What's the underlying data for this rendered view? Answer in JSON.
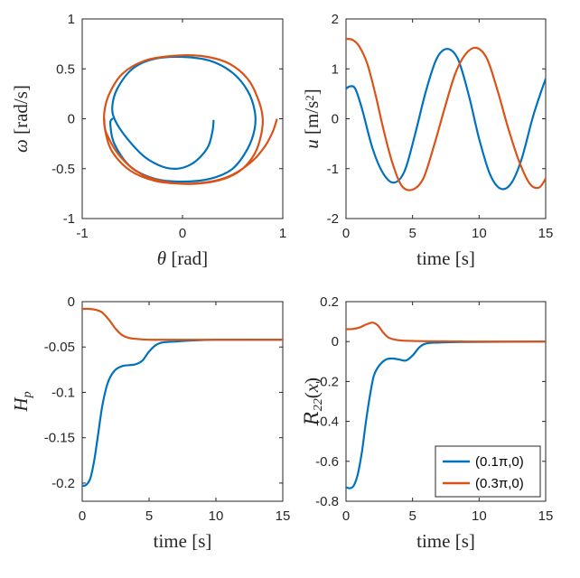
{
  "colors": {
    "series1": "#0072BD",
    "series2": "#D95319",
    "axis": "#262626"
  },
  "legend": {
    "entries": [
      "(0.1π,0)",
      "(0.3π,0)"
    ],
    "location": "bottom-right of bottom-right panel"
  },
  "chart_data": [
    {
      "type": "line",
      "panel": "top-left",
      "xlabel": "θ [rad]",
      "ylabel": "ω [rad/s]",
      "xlim": [
        -1,
        1
      ],
      "ylim": [
        -1,
        1
      ],
      "xticks": [
        -1,
        0,
        1
      ],
      "yticks": [
        -1,
        -0.5,
        0,
        0.5,
        1
      ],
      "xtick_labels": [
        "-1",
        "0",
        "1"
      ],
      "ytick_labels": [
        "-1",
        "-0.5",
        "0",
        "0.5",
        "1"
      ],
      "series": [
        {
          "name": "(0.1π,0)",
          "x": [
            0.31,
            0.3,
            0.26,
            0.18,
            0.08,
            -0.05,
            -0.2,
            -0.38,
            -0.55,
            -0.67,
            -0.7,
            -0.65,
            -0.5,
            -0.28,
            0.0,
            0.28,
            0.5,
            0.65,
            0.72,
            0.72,
            0.65,
            0.5,
            0.28,
            0.0,
            -0.28,
            -0.52,
            -0.68,
            -0.72,
            -0.7
          ],
          "y": [
            -0.02,
            -0.12,
            -0.27,
            -0.38,
            -0.46,
            -0.5,
            -0.48,
            -0.38,
            -0.2,
            -0.02,
            0.12,
            0.3,
            0.5,
            0.6,
            0.62,
            0.58,
            0.46,
            0.28,
            0.08,
            -0.1,
            -0.3,
            -0.5,
            -0.6,
            -0.63,
            -0.6,
            -0.48,
            -0.25,
            -0.05,
            0.0
          ]
        },
        {
          "name": "(0.3π,0)",
          "x": [
            0.94,
            0.9,
            0.82,
            0.7,
            0.5,
            0.28,
            0.0,
            -0.28,
            -0.52,
            -0.7,
            -0.77,
            -0.78,
            -0.73,
            -0.6,
            -0.38,
            -0.1,
            0.18,
            0.45,
            0.65,
            0.76,
            0.8,
            0.78,
            0.72,
            0.6,
            0.42,
            0.15,
            -0.12,
            -0.4,
            -0.62,
            -0.76,
            -0.78
          ],
          "y": [
            -0.01,
            -0.13,
            -0.28,
            -0.42,
            -0.56,
            -0.63,
            -0.65,
            -0.62,
            -0.52,
            -0.33,
            -0.12,
            0.06,
            0.25,
            0.45,
            0.58,
            0.63,
            0.63,
            0.56,
            0.4,
            0.18,
            0.0,
            -0.18,
            -0.35,
            -0.5,
            -0.6,
            -0.65,
            -0.64,
            -0.56,
            -0.38,
            -0.14,
            0.0
          ]
        }
      ]
    },
    {
      "type": "line",
      "panel": "top-right",
      "xlabel": "time [s]",
      "ylabel": "u [m/s²]",
      "xlim": [
        0,
        15
      ],
      "ylim": [
        -2,
        2
      ],
      "xticks": [
        0,
        5,
        10,
        15
      ],
      "yticks": [
        -2,
        -1,
        0,
        1,
        2
      ],
      "xtick_labels": [
        "0",
        "5",
        "10",
        "15"
      ],
      "ytick_labels": [
        "-2",
        "-1",
        "0",
        "1",
        "2"
      ],
      "series": [
        {
          "name": "(0.1π,0)",
          "x": [
            0,
            0.3,
            0.7,
            1.2,
            2.0,
            2.8,
            3.6,
            4.4,
            5.2,
            6.0,
            6.8,
            7.6,
            8.4,
            9.2,
            10.0,
            10.8,
            11.6,
            12.4,
            13.2,
            14.0,
            14.6,
            15.0
          ],
          "y": [
            0.6,
            0.65,
            0.6,
            0.2,
            -0.6,
            -1.1,
            -1.28,
            -1.05,
            -0.3,
            0.55,
            1.2,
            1.4,
            1.2,
            0.5,
            -0.4,
            -1.1,
            -1.4,
            -1.3,
            -0.8,
            0.0,
            0.5,
            0.8
          ]
        },
        {
          "name": "(0.3π,0)",
          "x": [
            0,
            0.5,
            1.0,
            1.6,
            2.2,
            2.8,
            3.5,
            4.2,
            5.0,
            5.8,
            6.6,
            7.4,
            8.2,
            9.0,
            9.8,
            10.6,
            11.4,
            12.2,
            13.0,
            13.8,
            14.5,
            15.0
          ],
          "y": [
            1.6,
            1.58,
            1.45,
            1.1,
            0.5,
            -0.2,
            -0.9,
            -1.35,
            -1.42,
            -1.2,
            -0.55,
            0.2,
            0.9,
            1.3,
            1.42,
            1.2,
            0.55,
            -0.2,
            -0.85,
            -1.3,
            -1.38,
            -1.2
          ]
        }
      ]
    },
    {
      "type": "line",
      "panel": "bottom-left",
      "xlabel": "time [s]",
      "ylabel": "Hp",
      "xlim": [
        0,
        15
      ],
      "ylim": [
        -0.22,
        0
      ],
      "xticks": [
        0,
        5,
        10,
        15
      ],
      "yticks": [
        -0.2,
        -0.15,
        -0.1,
        -0.05,
        0
      ],
      "xtick_labels": [
        "0",
        "5",
        "10",
        "15"
      ],
      "ytick_labels": [
        "-0.2",
        "-0.15",
        "-0.1",
        "-0.05",
        "0"
      ],
      "series": [
        {
          "name": "(0.1π,0)",
          "x": [
            0,
            0.3,
            0.6,
            0.9,
            1.2,
            1.5,
            1.8,
            2.1,
            2.5,
            3.0,
            3.5,
            4.0,
            4.5,
            5.0,
            5.5,
            6.0,
            7.0,
            8.0,
            10.0,
            15.0
          ],
          "y": [
            -0.203,
            -0.202,
            -0.195,
            -0.175,
            -0.145,
            -0.115,
            -0.095,
            -0.083,
            -0.075,
            -0.071,
            -0.07,
            -0.069,
            -0.065,
            -0.055,
            -0.048,
            -0.045,
            -0.044,
            -0.043,
            -0.042,
            -0.042
          ]
        },
        {
          "name": "(0.3π,0)",
          "x": [
            0,
            0.5,
            1.0,
            1.5,
            2.0,
            2.5,
            3.0,
            3.5,
            4.0,
            5.0,
            7.0,
            10.0,
            15.0
          ],
          "y": [
            -0.008,
            -0.008,
            -0.009,
            -0.012,
            -0.02,
            -0.03,
            -0.037,
            -0.04,
            -0.041,
            -0.042,
            -0.042,
            -0.042,
            -0.042
          ]
        }
      ]
    },
    {
      "type": "line",
      "panel": "bottom-right",
      "xlabel": "time [s]",
      "ylabel": "R22(x)",
      "xlim": [
        0,
        15
      ],
      "ylim": [
        -0.8,
        0.2
      ],
      "xticks": [
        0,
        5,
        10,
        15
      ],
      "yticks": [
        -0.8,
        -0.6,
        -0.4,
        -0.2,
        0,
        0.2
      ],
      "xtick_labels": [
        "0",
        "5",
        "10",
        "15"
      ],
      "ytick_labels": [
        "-0.8",
        "-0.6",
        "-0.4",
        "-0.2",
        "0",
        "0.2"
      ],
      "series": [
        {
          "name": "(0.1π,0)",
          "x": [
            0,
            0.3,
            0.6,
            0.9,
            1.2,
            1.5,
            1.8,
            2.1,
            2.5,
            3.0,
            3.5,
            4.0,
            4.5,
            5.0,
            5.5,
            6.0,
            7.0,
            9.0,
            15.0
          ],
          "y": [
            -0.73,
            -0.735,
            -0.72,
            -0.66,
            -0.55,
            -0.4,
            -0.27,
            -0.17,
            -0.12,
            -0.09,
            -0.085,
            -0.09,
            -0.095,
            -0.07,
            -0.03,
            -0.01,
            -0.005,
            -0.002,
            0.0
          ]
        },
        {
          "name": "(0.3π,0)",
          "x": [
            0,
            0.5,
            1.0,
            1.5,
            2.0,
            2.4,
            2.8,
            3.2,
            3.8,
            4.5,
            6.0,
            10.0,
            15.0
          ],
          "y": [
            0.062,
            0.063,
            0.07,
            0.085,
            0.095,
            0.08,
            0.045,
            0.02,
            0.008,
            0.004,
            0.002,
            0.0,
            0.0
          ]
        }
      ]
    }
  ]
}
